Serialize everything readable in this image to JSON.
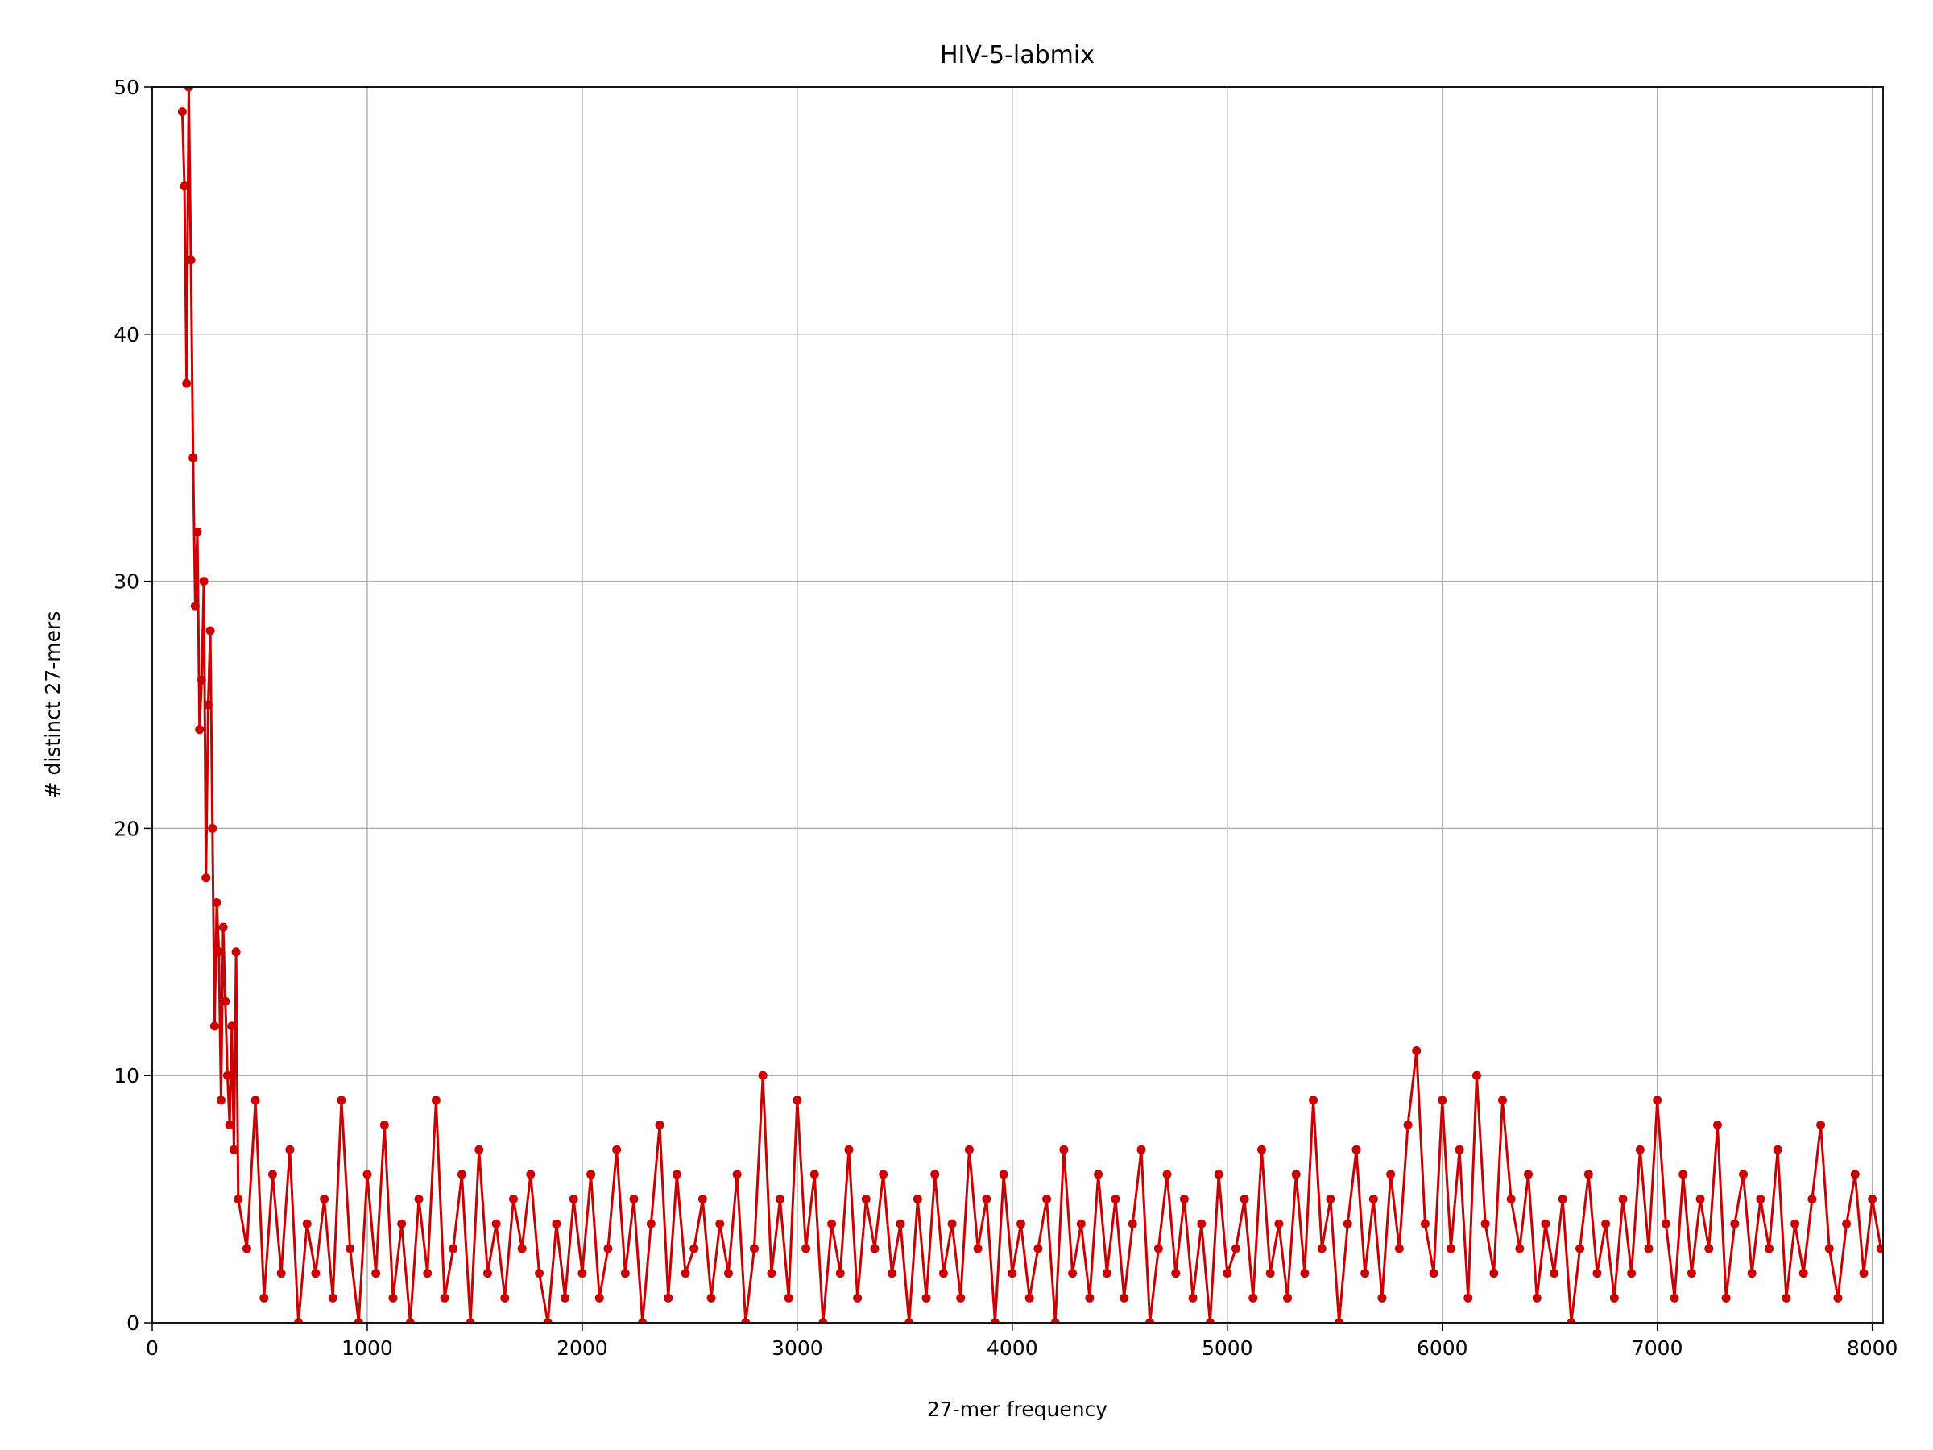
{
  "chart_data": {
    "type": "line",
    "title": "HIV-5-labmix",
    "xlabel": "27-mer frequency",
    "ylabel": "# distinct 27-mers",
    "color": "#cc0000",
    "xlim": [
      0,
      8050
    ],
    "ylim": [
      0,
      50
    ],
    "xticks": [
      0,
      1000,
      2000,
      3000,
      4000,
      5000,
      6000,
      7000,
      8000
    ],
    "yticks": [
      0,
      10,
      20,
      30,
      40,
      50
    ],
    "grid": true,
    "x": [
      140,
      150,
      160,
      170,
      180,
      190,
      200,
      210,
      220,
      230,
      240,
      250,
      260,
      270,
      280,
      290,
      300,
      310,
      320,
      330,
      340,
      350,
      360,
      370,
      380,
      390,
      400,
      440,
      480,
      520,
      560,
      600,
      640,
      680,
      720,
      760,
      800,
      840,
      880,
      920,
      960,
      1000,
      1040,
      1080,
      1120,
      1160,
      1200,
      1240,
      1280,
      1320,
      1360,
      1400,
      1440,
      1480,
      1520,
      1560,
      1600,
      1640,
      1680,
      1720,
      1760,
      1800,
      1840,
      1880,
      1920,
      1960,
      2000,
      2040,
      2080,
      2120,
      2160,
      2200,
      2240,
      2280,
      2320,
      2360,
      2400,
      2440,
      2480,
      2520,
      2560,
      2600,
      2640,
      2680,
      2720,
      2760,
      2800,
      2840,
      2880,
      2920,
      2960,
      3000,
      3040,
      3080,
      3120,
      3160,
      3200,
      3240,
      3280,
      3320,
      3360,
      3400,
      3440,
      3480,
      3520,
      3560,
      3600,
      3640,
      3680,
      3720,
      3760,
      3800,
      3840,
      3880,
      3920,
      3960,
      4000,
      4040,
      4080,
      4120,
      4160,
      4200,
      4240,
      4280,
      4320,
      4360,
      4400,
      4440,
      4480,
      4520,
      4560,
      4600,
      4640,
      4680,
      4720,
      4760,
      4800,
      4840,
      4880,
      4920,
      4960,
      5000,
      5040,
      5080,
      5120,
      5160,
      5200,
      5240,
      5280,
      5320,
      5360,
      5400,
      5440,
      5480,
      5520,
      5560,
      5600,
      5640,
      5680,
      5720,
      5760,
      5800,
      5840,
      5880,
      5920,
      5960,
      6000,
      6040,
      6080,
      6120,
      6160,
      6200,
      6240,
      6280,
      6320,
      6360,
      6400,
      6440,
      6480,
      6520,
      6560,
      6600,
      6640,
      6680,
      6720,
      6760,
      6800,
      6840,
      6880,
      6920,
      6960,
      7000,
      7040,
      7080,
      7120,
      7160,
      7200,
      7240,
      7280,
      7320,
      7360,
      7400,
      7440,
      7480,
      7520,
      7560,
      7600,
      7640,
      7680,
      7720,
      7760,
      7800,
      7840,
      7880,
      7920,
      7960,
      8000,
      8040
    ],
    "values": [
      49,
      46,
      38,
      50,
      43,
      35,
      29,
      32,
      24,
      26,
      30,
      18,
      25,
      28,
      20,
      12,
      17,
      15,
      9,
      16,
      13,
      10,
      8,
      12,
      7,
      15,
      5,
      3,
      9,
      1,
      6,
      2,
      7,
      0,
      4,
      2,
      5,
      1,
      9,
      3,
      0,
      6,
      2,
      8,
      1,
      4,
      0,
      5,
      2,
      9,
      1,
      3,
      6,
      0,
      7,
      2,
      4,
      1,
      5,
      3,
      6,
      2,
      0,
      4,
      1,
      5,
      2,
      6,
      1,
      3,
      7,
      2,
      5,
      0,
      4,
      8,
      1,
      6,
      2,
      3,
      5,
      1,
      4,
      2,
      6,
      0,
      3,
      10,
      2,
      5,
      1,
      9,
      3,
      6,
      0,
      4,
      2,
      7,
      1,
      5,
      3,
      6,
      2,
      4,
      0,
      5,
      1,
      6,
      2,
      4,
      1,
      7,
      3,
      5,
      0,
      6,
      2,
      4,
      1,
      3,
      5,
      0,
      7,
      2,
      4,
      1,
      6,
      2,
      5,
      1,
      4,
      7,
      0,
      3,
      6,
      2,
      5,
      1,
      4,
      0,
      6,
      2,
      3,
      5,
      1,
      7,
      2,
      4,
      1,
      6,
      2,
      9,
      3,
      5,
      0,
      4,
      7,
      2,
      5,
      1,
      6,
      3,
      8,
      11,
      4,
      2,
      9,
      3,
      7,
      1,
      10,
      4,
      2,
      9,
      5,
      3,
      6,
      1,
      4,
      2,
      5,
      0,
      3,
      6,
      2,
      4,
      1,
      5,
      2,
      7,
      3,
      9,
      4,
      1,
      6,
      2,
      5,
      3,
      8,
      1,
      4,
      6,
      2,
      5,
      3,
      7,
      1,
      4,
      2,
      5,
      8,
      3,
      1,
      4,
      6,
      2,
      5,
      3
    ]
  }
}
